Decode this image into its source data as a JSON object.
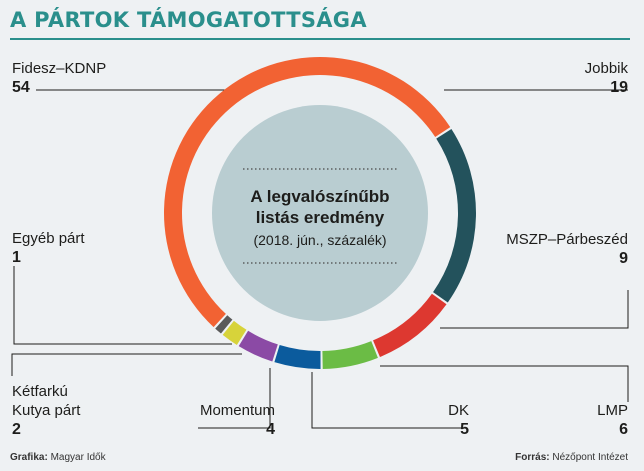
{
  "header": {
    "title": "A PÁRTOK TÁMOGATOTTSÁGA"
  },
  "center": {
    "line1": "A legvalószínűbb",
    "line2": "listás eredmény",
    "line3": "(2018. jún., százalék)"
  },
  "footer": {
    "credit_label": "Grafika:",
    "credit_value": "Magyar Idők",
    "source_label": "Forrás:",
    "source_value": "Nézőpont Intézet"
  },
  "colors": {
    "accent": "#2a8f8c",
    "center_fill": "#b9cdd1",
    "background": "#eef1f3"
  },
  "chart_data": {
    "type": "pie",
    "style": "donut",
    "categories": [
      "Fidesz–KDNP",
      "Jobbik",
      "MSZP–Párbeszéd",
      "LMP",
      "DK",
      "Momentum",
      "Kétfarkú Kutya párt",
      "Egyéb párt"
    ],
    "values": [
      54,
      19,
      9,
      6,
      5,
      4,
      2,
      1
    ],
    "colors": [
      "#f26233",
      "#23525c",
      "#dd3830",
      "#6bbc45",
      "#0b5b9d",
      "#8b4aa5",
      "#d7d33a",
      "#5a5a5a"
    ],
    "labels": [
      {
        "name": "Fidesz–KDNP",
        "value": "54"
      },
      {
        "name": "Jobbik",
        "value": "19"
      },
      {
        "name": "MSZP–Párbeszéd",
        "value": "9"
      },
      {
        "name": "LMP",
        "value": "6"
      },
      {
        "name": "DK",
        "value": "5"
      },
      {
        "name": "Momentum",
        "value": "4"
      },
      {
        "name1": "Kétfarkú",
        "name2": "Kutya párt",
        "value": "2"
      },
      {
        "name": "Egyéb párt",
        "value": "1"
      }
    ]
  }
}
